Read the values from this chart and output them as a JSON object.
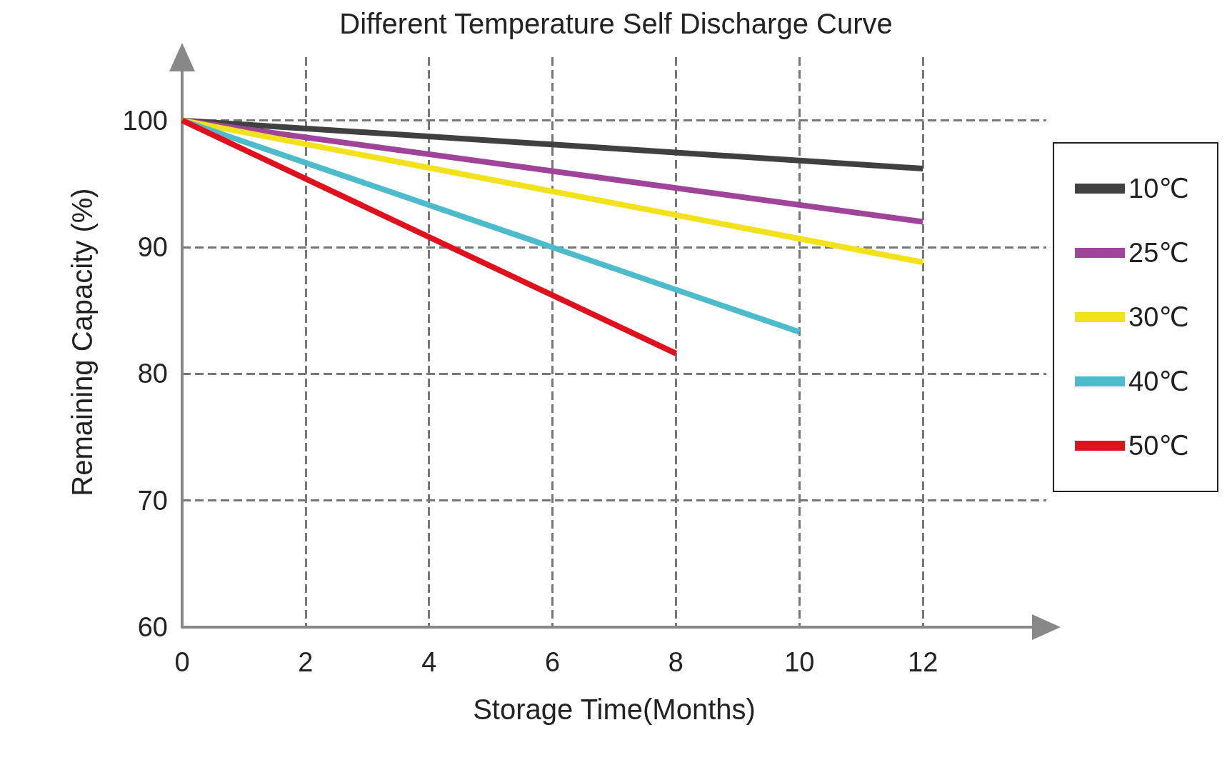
{
  "chart_data": {
    "type": "line",
    "title": "Different Temperature Self Discharge Curve",
    "xlabel": "Storage Time(Months)",
    "ylabel": "Remaining Capacity (%)",
    "series": [
      {
        "name": "10℃",
        "color": "#404040",
        "x": [
          0,
          12
        ],
        "values": [
          100,
          96.2
        ]
      },
      {
        "name": "25℃",
        "color": "#a0449a",
        "x": [
          0,
          12
        ],
        "values": [
          100,
          92.0
        ]
      },
      {
        "name": "30℃",
        "color": "#f2e21c",
        "x": [
          0,
          12
        ],
        "values": [
          100,
          88.8
        ]
      },
      {
        "name": "40℃",
        "color": "#4cbccc",
        "x": [
          0,
          10
        ],
        "values": [
          100,
          83.3
        ]
      },
      {
        "name": "50℃",
        "color": "#e0101c",
        "x": [
          0,
          8
        ],
        "values": [
          100,
          81.6
        ]
      }
    ],
    "xlim": [
      0,
      14
    ],
    "xticks": [
      0,
      2,
      4,
      6,
      8,
      10,
      12
    ],
    "ylim": [
      60,
      105
    ],
    "yticks": [
      60,
      70,
      80,
      90,
      100
    ],
    "grid": true,
    "legend": "right",
    "marker": "none",
    "line_style": "solid"
  }
}
